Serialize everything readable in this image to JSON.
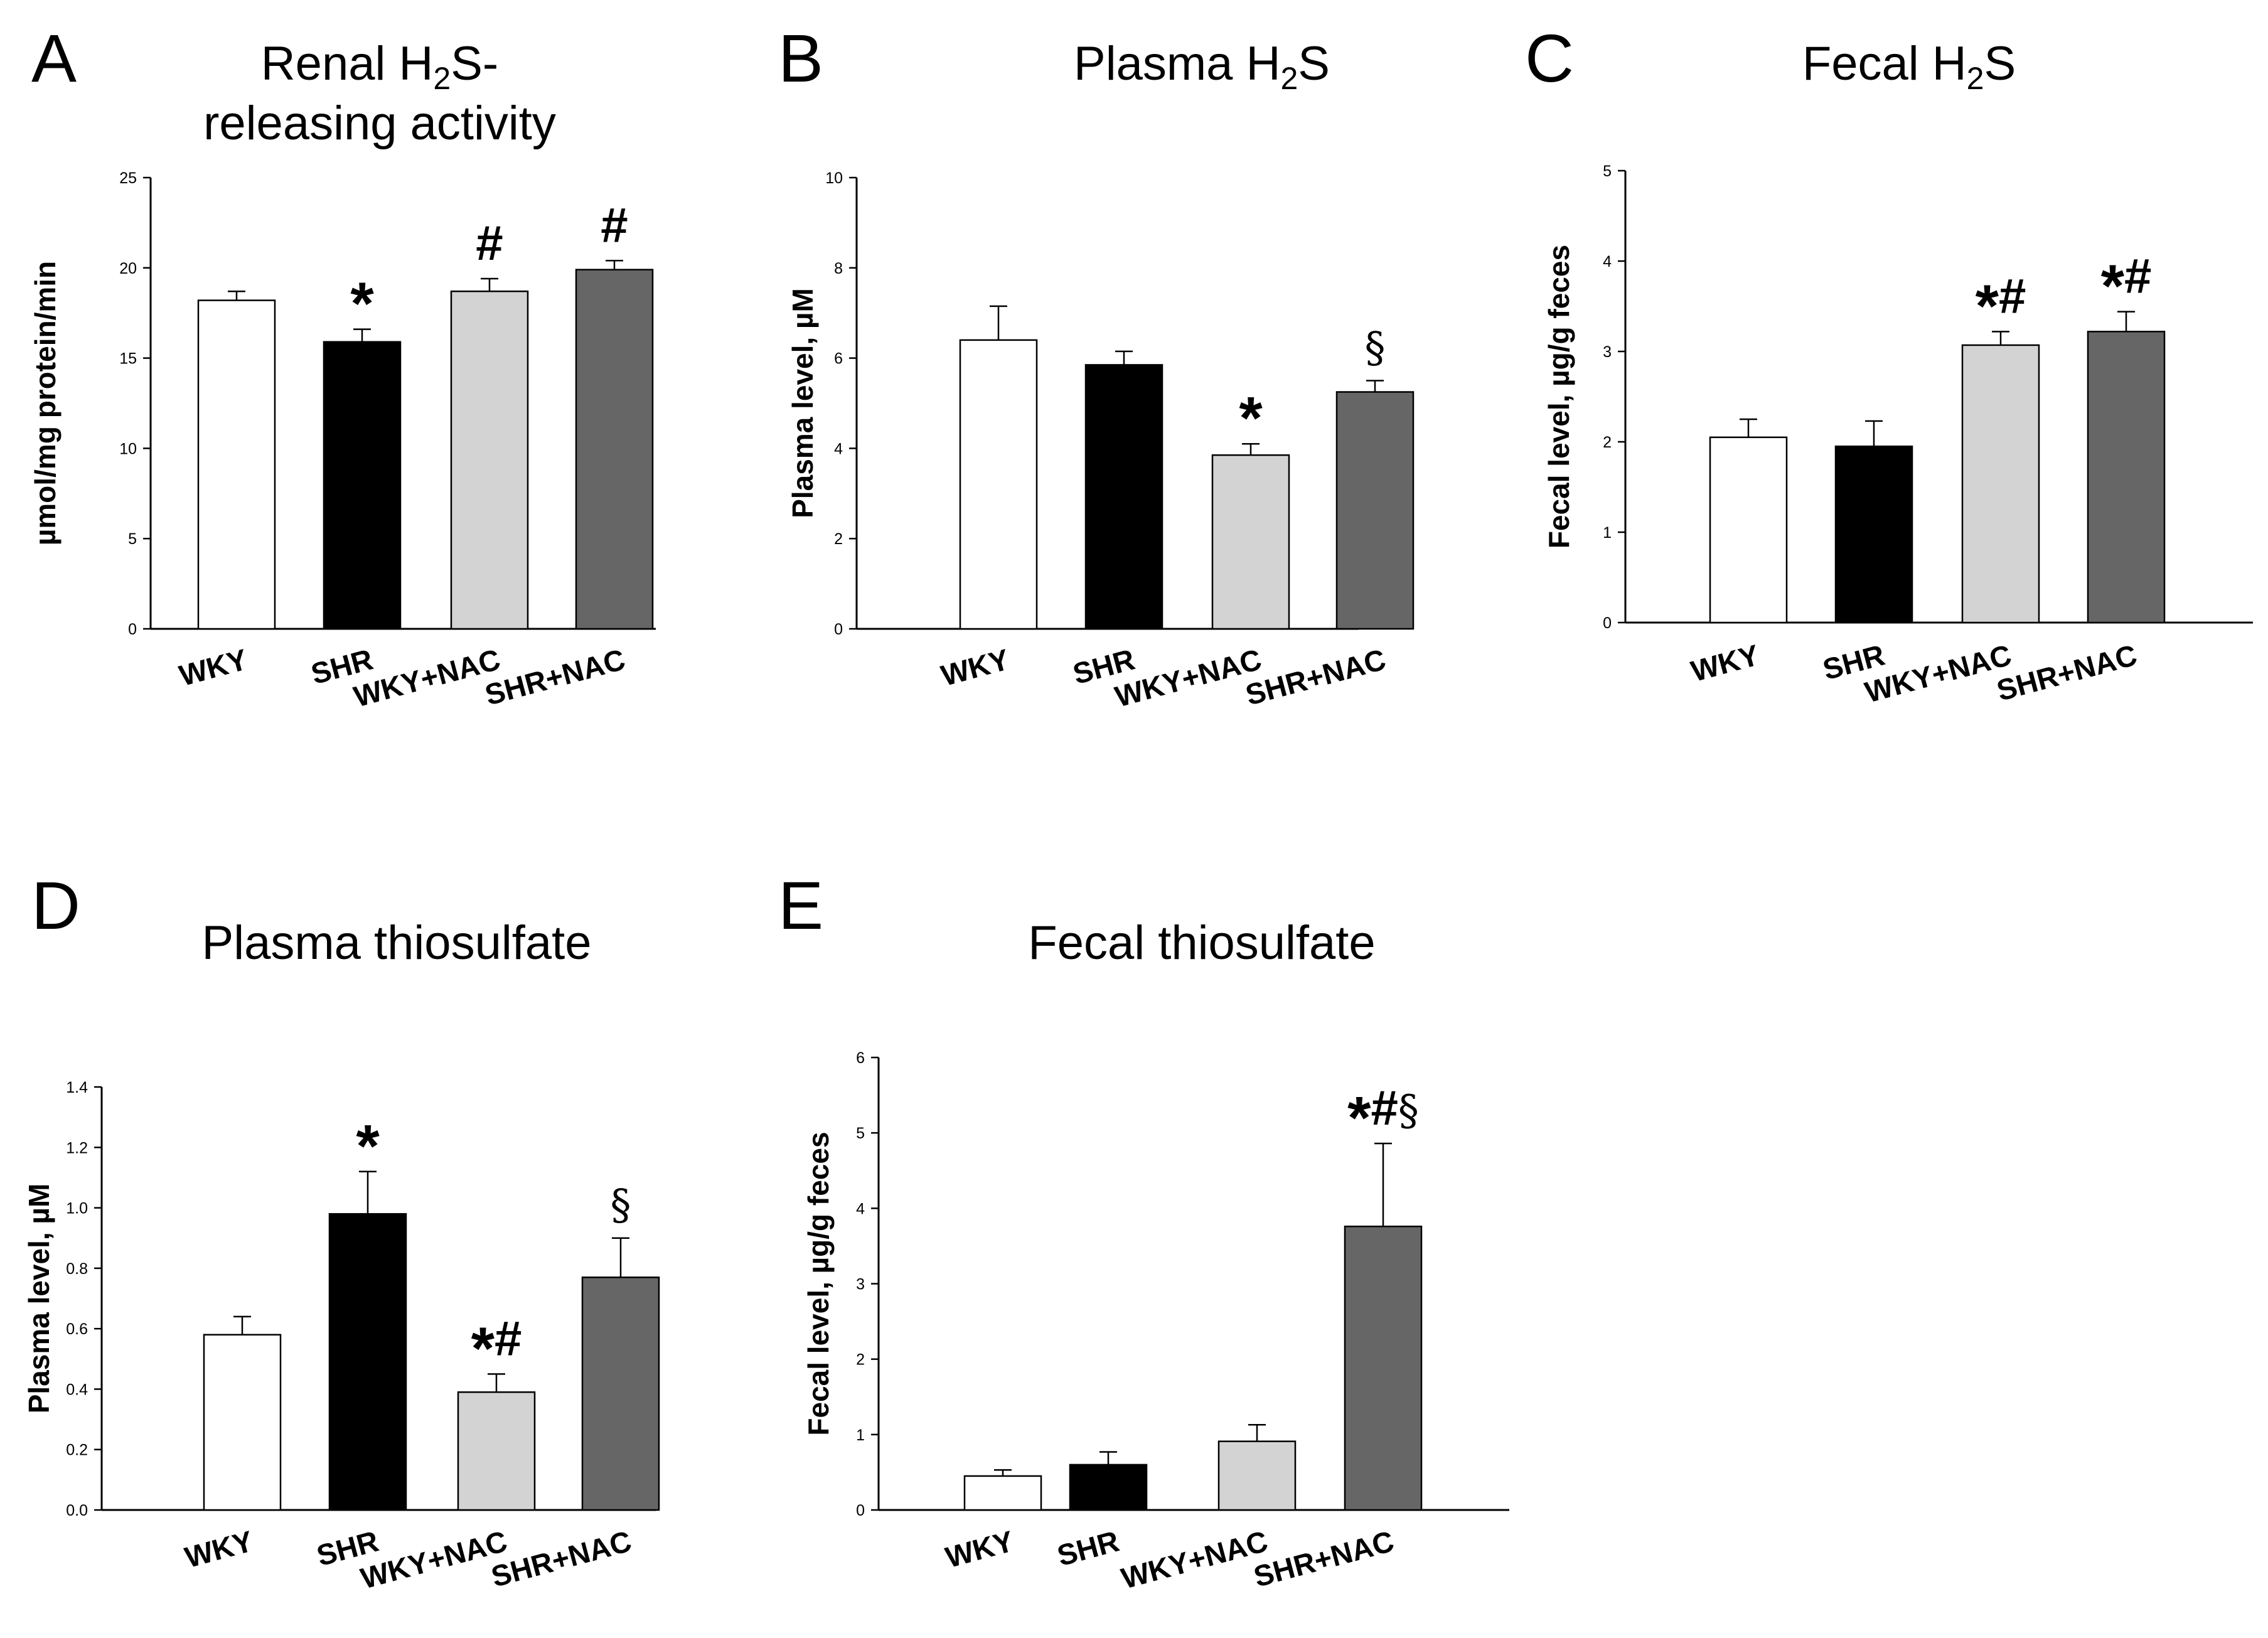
{
  "chart_data": [
    {
      "id": "A",
      "type": "bar",
      "letter": "A",
      "title_lines": [
        [
          "Renal H",
          "2",
          "S-"
        ],
        [
          "releasing activity"
        ]
      ],
      "ylabel": "µmol/mg protein/min",
      "categories": [
        "WKY",
        "SHR",
        "WKY+NAC",
        "SHR+NAC"
      ],
      "values": [
        18.2,
        15.9,
        18.7,
        19.9
      ],
      "errors": [
        0.5,
        0.7,
        0.7,
        0.5
      ],
      "annotations": [
        "",
        "*",
        "#",
        "#"
      ],
      "colors": [
        "#ffffff",
        "#000000",
        "#d3d3d3",
        "#666666"
      ],
      "ylim": [
        0,
        25
      ],
      "yticks": [
        "0",
        "5",
        "10",
        "15",
        "20",
        "25"
      ]
    },
    {
      "id": "B",
      "type": "bar",
      "letter": "B",
      "title_lines": [
        [
          "Plasma H",
          "2",
          "S"
        ]
      ],
      "ylabel": "Plasma level, µM",
      "categories": [
        "WKY",
        "SHR",
        "WKY+NAC",
        "SHR+NAC"
      ],
      "values": [
        6.4,
        5.85,
        3.85,
        5.25
      ],
      "errors": [
        0.75,
        0.3,
        0.25,
        0.25
      ],
      "annotations": [
        "",
        "",
        "*",
        "§"
      ],
      "colors": [
        "#ffffff",
        "#000000",
        "#d3d3d3",
        "#666666"
      ],
      "ylim": [
        0,
        10
      ],
      "yticks": [
        "0",
        "2",
        "4",
        "6",
        "8",
        "10"
      ]
    },
    {
      "id": "C",
      "type": "bar",
      "letter": "C",
      "title_lines": [
        [
          "Fecal H",
          "2",
          "S"
        ]
      ],
      "ylabel": "Fecal level, µg/g feces",
      "categories": [
        "WKY",
        "SHR",
        "WKY+NAC",
        "SHR+NAC"
      ],
      "values": [
        2.05,
        1.95,
        3.07,
        3.22
      ],
      "errors": [
        0.2,
        0.28,
        0.15,
        0.22
      ],
      "annotations": [
        "",
        "",
        "*#",
        "*#"
      ],
      "colors": [
        "#ffffff",
        "#000000",
        "#d3d3d3",
        "#666666"
      ],
      "ylim": [
        0,
        5
      ],
      "yticks": [
        "0",
        "1",
        "2",
        "3",
        "4",
        "5"
      ]
    },
    {
      "id": "D",
      "type": "bar",
      "letter": "D",
      "title_lines": [
        [
          "Plasma thiosulfate"
        ]
      ],
      "ylabel": "Plasma level, µM",
      "categories": [
        "WKY",
        "SHR",
        "WKY+NAC",
        "SHR+NAC"
      ],
      "values": [
        0.58,
        0.98,
        0.39,
        0.77
      ],
      "errors": [
        0.06,
        0.14,
        0.06,
        0.13
      ],
      "annotations": [
        "",
        "*",
        "*#",
        "§"
      ],
      "colors": [
        "#ffffff",
        "#000000",
        "#d3d3d3",
        "#666666"
      ],
      "ylim": [
        0,
        1.4
      ],
      "yticks": [
        "0.0",
        "0.2",
        "0.4",
        "0.6",
        "0.8",
        "1.0",
        "1.2",
        "1.4"
      ]
    },
    {
      "id": "E",
      "type": "bar",
      "letter": "E",
      "title_lines": [
        [
          "Fecal thiosulfate"
        ]
      ],
      "ylabel": "Fecal level, µg/g feces",
      "categories": [
        "WKY",
        "SHR",
        "WKY+NAC",
        "SHR+NAC"
      ],
      "values": [
        0.45,
        0.6,
        0.91,
        3.76
      ],
      "errors": [
        0.08,
        0.17,
        0.22,
        1.1
      ],
      "annotations": [
        "",
        "",
        "",
        "*#§"
      ],
      "colors": [
        "#ffffff",
        "#000000",
        "#d3d3d3",
        "#666666"
      ],
      "ylim": [
        0,
        6
      ],
      "yticks": [
        "0",
        "1",
        "2",
        "3",
        "4",
        "5",
        "6"
      ]
    }
  ]
}
